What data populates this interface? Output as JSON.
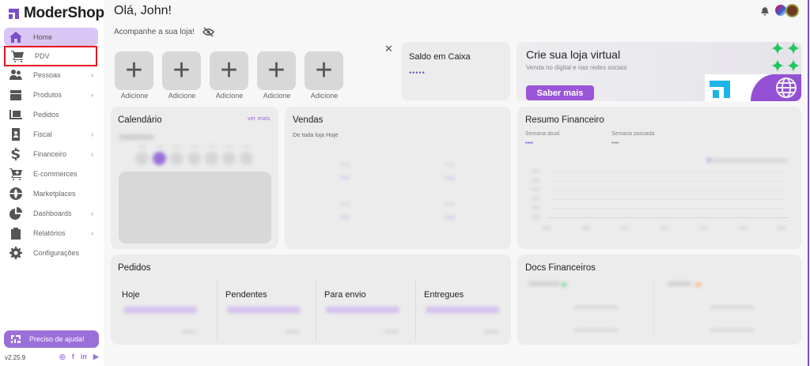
{
  "brand": {
    "name": "ModerShop",
    "accent": "#9b6fd9"
  },
  "sidebar": {
    "items": [
      {
        "label": "Home",
        "icon": "home-icon",
        "active": true
      },
      {
        "label": "PDV",
        "icon": "cart-icon",
        "highlighted": true
      },
      {
        "label": "Pessoas",
        "icon": "people-icon",
        "submenu": true
      },
      {
        "label": "Produtos",
        "icon": "box-icon",
        "submenu": true
      },
      {
        "label": "Pedidos",
        "icon": "orders-icon"
      },
      {
        "label": "Fiscal",
        "icon": "badge-icon",
        "submenu": true
      },
      {
        "label": "Financeiro",
        "icon": "dollar-icon",
        "submenu": true
      },
      {
        "label": "E-commerces",
        "icon": "cart-plus-icon"
      },
      {
        "label": "Marketplaces",
        "icon": "globe-icon"
      },
      {
        "label": "Dashboards",
        "icon": "pie-chart-icon",
        "submenu": true
      },
      {
        "label": "Relatórios",
        "icon": "clipboard-icon",
        "submenu": true
      },
      {
        "label": "Configurações",
        "icon": "gear-icon"
      }
    ],
    "help_label": "Preciso de ajuda!",
    "version": "v2.25.9",
    "social": [
      "instagram-icon",
      "facebook-icon",
      "linkedin-icon",
      "youtube-icon"
    ]
  },
  "header": {
    "greeting": "Olá, John!",
    "subtitle": "Acompanhe a sua loja!"
  },
  "shortcuts": {
    "items": [
      "Adicione",
      "Adicione",
      "Adicione",
      "Adicione",
      "Adicione"
    ]
  },
  "saldo": {
    "title": "Saldo em Caixa",
    "value": "•••••"
  },
  "banner": {
    "title": "Crie sua loja virtual",
    "subtitle": "Venda no digital e nas redes sociais",
    "button": "Saber mais"
  },
  "calendar": {
    "title": "Calendário",
    "link": "ver mais"
  },
  "vendas": {
    "title": "Vendas",
    "subtitle": "De toda loja Hoje"
  },
  "resumo": {
    "title": "Resumo Financeiro",
    "current_label": "Semana atual",
    "current_value": "••••",
    "last_label": "Semana passada",
    "last_value": "••••"
  },
  "pedidos": {
    "title": "Pedidos",
    "columns": [
      "Hoje",
      "Pendentes",
      "Para envio",
      "Entregues"
    ]
  },
  "docs": {
    "title": "Docs Financeiros"
  }
}
